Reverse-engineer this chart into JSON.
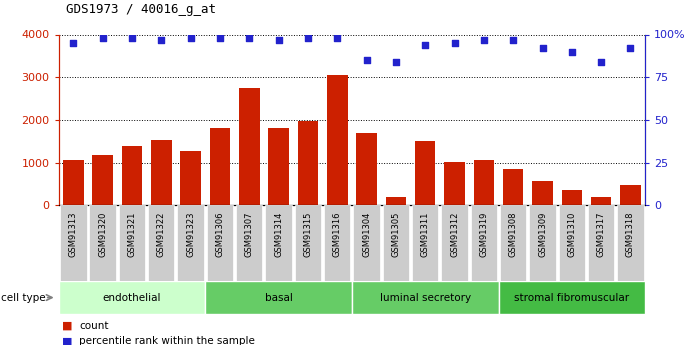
{
  "title": "GDS1973 / 40016_g_at",
  "samples": [
    "GSM91313",
    "GSM91320",
    "GSM91321",
    "GSM91322",
    "GSM91323",
    "GSM91306",
    "GSM91307",
    "GSM91314",
    "GSM91315",
    "GSM91316",
    "GSM91304",
    "GSM91305",
    "GSM91311",
    "GSM91312",
    "GSM91319",
    "GSM91308",
    "GSM91309",
    "GSM91310",
    "GSM91317",
    "GSM91318"
  ],
  "counts": [
    1050,
    1180,
    1390,
    1520,
    1280,
    1820,
    2750,
    1820,
    1970,
    3040,
    1700,
    190,
    1500,
    1020,
    1060,
    860,
    570,
    350,
    190,
    480
  ],
  "percentile_ranks": [
    95,
    98,
    98,
    97,
    98,
    98,
    98,
    97,
    98,
    98,
    85,
    84,
    94,
    95,
    97,
    97,
    92,
    90,
    84,
    92
  ],
  "cell_types": [
    {
      "label": "endothelial",
      "start": 0,
      "end": 5,
      "color": "#d8f5d8"
    },
    {
      "label": "basal",
      "start": 5,
      "end": 10,
      "color": "#88dd88"
    },
    {
      "label": "luminal secretory",
      "start": 10,
      "end": 15,
      "color": "#88dd88"
    },
    {
      "label": "stromal fibromuscular",
      "start": 15,
      "end": 20,
      "color": "#55cc55"
    }
  ],
  "bar_color": "#cc2000",
  "dot_color": "#2222cc",
  "ylim_left": [
    0,
    4000
  ],
  "ylim_right": [
    0,
    100
  ],
  "yticks_left": [
    0,
    1000,
    2000,
    3000,
    4000
  ],
  "yticks_right": [
    0,
    25,
    50,
    75,
    100
  ],
  "tick_label_bg": "#cccccc",
  "cell_type_colors": [
    "#ccffcc",
    "#66cc66",
    "#66cc66",
    "#44bb44"
  ]
}
